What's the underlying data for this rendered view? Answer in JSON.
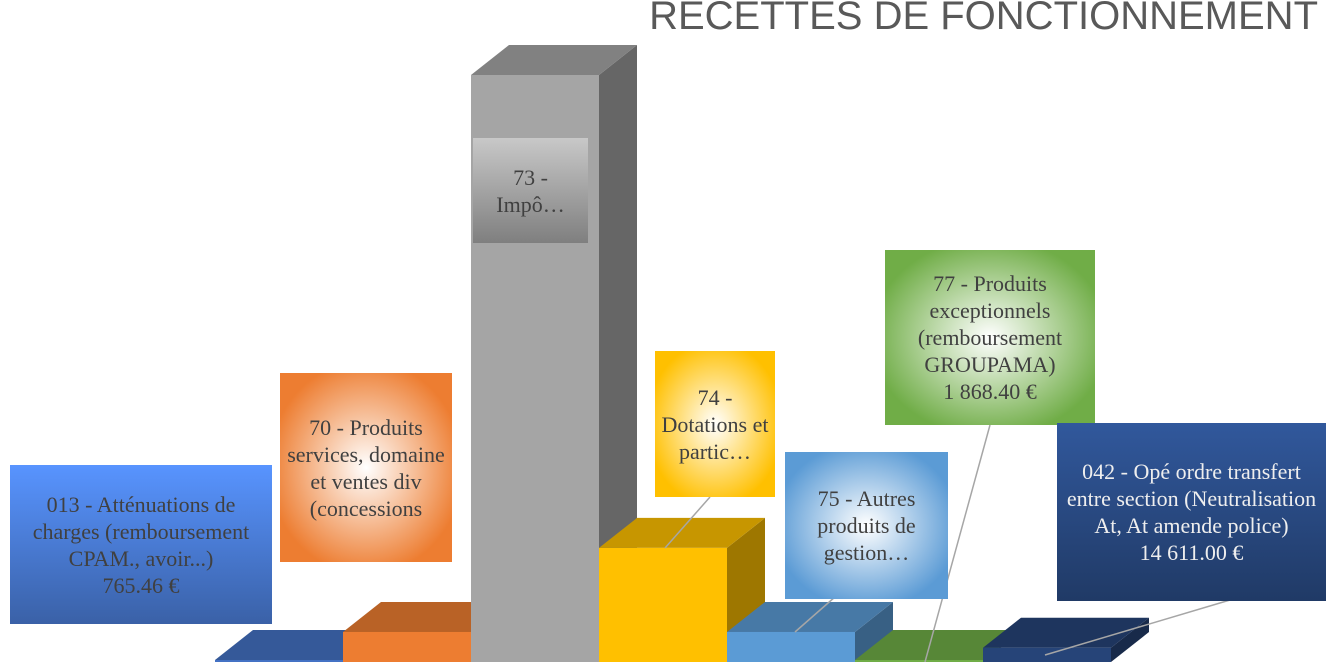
{
  "chart_data": {
    "type": "bar3d",
    "title": "RECETTES DE FONCTIONNEMENT",
    "categories": [
      "013 - Atténuations de charges (remboursement CPAM., avoir...)",
      "70 - Produits services, domaine et ventes div (concessions",
      "73 - Impô…",
      "74 - Dotations et partic…",
      "75 - Autres produits de gestion…",
      "77 - Produits exceptionnels (remboursement GROUPAMA)",
      "042 - Opé ordre transfert entre section (Neutralisation At, At amende police)"
    ],
    "values": [
      765.46,
      30700,
      600000,
      116600,
      30700,
      1868.4,
      14611.0
    ],
    "value_labels": [
      "765.46 €",
      null,
      null,
      null,
      null,
      "1 868.40 €",
      "14 611.00 €"
    ],
    "colors": [
      "#4472c4",
      "#ed7d31",
      "#a5a5a5",
      "#ffc000",
      "#5b9bd5",
      "#70ad47",
      "#264478"
    ],
    "ylim": [
      0,
      600000
    ]
  }
}
